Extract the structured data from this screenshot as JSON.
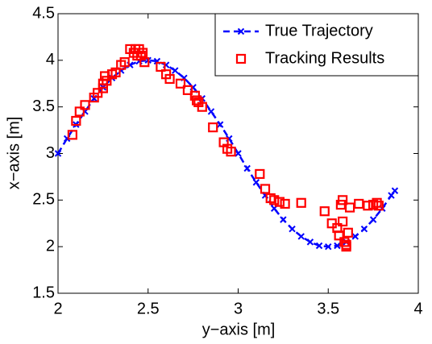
{
  "chart_data": {
    "type": "line_scatter",
    "xlabel": "y−axis [m]",
    "ylabel": "x−axis [m]",
    "xlim": [
      2,
      4
    ],
    "ylim": [
      1.5,
      4.5
    ],
    "xticks": [
      2,
      2.5,
      3,
      3.5,
      4
    ],
    "yticks": [
      1.5,
      2,
      2.5,
      3,
      3.5,
      4,
      4.5
    ],
    "grid": false,
    "legend": "upper right",
    "series": [
      {
        "name": "True Trajectory",
        "color": "#0000ff",
        "style": "dashed-x",
        "x": [
          2.0,
          2.05,
          2.1,
          2.15,
          2.2,
          2.25,
          2.3,
          2.35,
          2.4,
          2.45,
          2.5,
          2.55,
          2.6,
          2.65,
          2.7,
          2.75,
          2.8,
          2.85,
          2.9,
          2.95,
          3.0,
          3.05,
          3.1,
          3.15,
          3.2,
          3.25,
          3.3,
          3.35,
          3.4,
          3.45,
          3.5,
          3.55,
          3.6,
          3.65,
          3.7,
          3.75,
          3.8,
          3.85,
          3.87
        ],
        "values": [
          3.0,
          3.16,
          3.31,
          3.45,
          3.59,
          3.71,
          3.81,
          3.89,
          3.95,
          3.99,
          4.0,
          3.99,
          3.95,
          3.89,
          3.81,
          3.71,
          3.59,
          3.45,
          3.31,
          3.16,
          3.0,
          2.84,
          2.69,
          2.55,
          2.41,
          2.29,
          2.19,
          2.11,
          2.05,
          2.01,
          2.0,
          2.01,
          2.05,
          2.11,
          2.19,
          2.29,
          2.41,
          2.55,
          2.6
        ]
      },
      {
        "name": "Tracking Results",
        "color": "#ff0000",
        "style": "square",
        "x": [
          2.08,
          2.1,
          2.12,
          2.15,
          2.2,
          2.22,
          2.25,
          2.25,
          2.26,
          2.27,
          2.3,
          2.32,
          2.35,
          2.37,
          2.4,
          2.42,
          2.43,
          2.44,
          2.45,
          2.46,
          2.47,
          2.48,
          2.57,
          2.6,
          2.62,
          2.68,
          2.72,
          2.76,
          2.77,
          2.78,
          2.8,
          2.86,
          2.92,
          2.94,
          2.96,
          3.12,
          3.15,
          3.18,
          3.2,
          3.23,
          3.26,
          3.35,
          3.48,
          3.52,
          3.55,
          3.56,
          3.57,
          3.58,
          3.58,
          3.59,
          3.6,
          3.6,
          3.61,
          3.62,
          3.67,
          3.72,
          3.75,
          3.77,
          3.78
        ],
        "values": [
          3.2,
          3.35,
          3.45,
          3.52,
          3.6,
          3.65,
          3.7,
          3.75,
          3.83,
          3.78,
          3.85,
          3.87,
          3.95,
          3.98,
          4.12,
          4.08,
          4.12,
          4.05,
          4.12,
          4.05,
          4.08,
          3.98,
          3.93,
          3.85,
          3.8,
          3.75,
          3.68,
          3.62,
          3.57,
          3.55,
          3.5,
          3.28,
          3.12,
          3.05,
          3.02,
          2.78,
          2.62,
          2.52,
          2.5,
          2.48,
          2.46,
          2.47,
          2.38,
          2.25,
          2.2,
          2.12,
          2.45,
          2.5,
          2.27,
          2.05,
          2.02,
          2.0,
          2.15,
          2.42,
          2.46,
          2.44,
          2.45,
          2.47,
          2.44
        ]
      }
    ]
  }
}
